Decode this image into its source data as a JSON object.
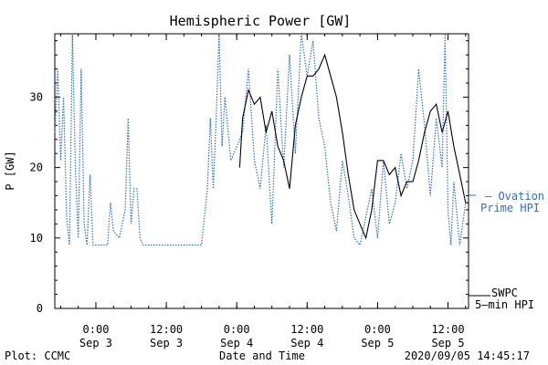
{
  "chart_data": {
    "type": "line",
    "title": "Hemispheric Power [GW]",
    "xlabel": "Date and Time",
    "ylabel": "P [GW]",
    "ylim": [
      0,
      39
    ],
    "xlim": [
      "2020-09-02 17:00",
      "2020-09-05 15:30"
    ],
    "y_ticks": [
      0,
      10,
      20,
      30
    ],
    "x_ticks": [
      {
        "x": "2020-09-03 00:00",
        "line1": "0:00",
        "line2": "Sep 3"
      },
      {
        "x": "2020-09-03 12:00",
        "line1": "12:00",
        "line2": "Sep 3"
      },
      {
        "x": "2020-09-04 00:00",
        "line1": "0:00",
        "line2": "Sep 4"
      },
      {
        "x": "2020-09-04 12:00",
        "line1": "12:00",
        "line2": "Sep 4"
      },
      {
        "x": "2020-09-05 00:00",
        "line1": "0:00",
        "line2": "Sep 5"
      },
      {
        "x": "2020-09-05 12:00",
        "line1": "12:00",
        "line2": "Sep 5"
      }
    ],
    "grid": false,
    "series": [
      {
        "name": "— Ovation Prime HPI",
        "legend_lines": [
          "— Ovation",
          "Prime HPI"
        ],
        "color": "#2f6fc4",
        "style": "dotted",
        "x": [
          "2020-09-02 17:00",
          "2020-09-02 17:30",
          "2020-09-02 18:00",
          "2020-09-02 18:30",
          "2020-09-02 19:00",
          "2020-09-02 19:30",
          "2020-09-02 20:00",
          "2020-09-02 20:30",
          "2020-09-02 21:00",
          "2020-09-02 21:30",
          "2020-09-02 22:00",
          "2020-09-02 22:30",
          "2020-09-02 23:00",
          "2020-09-02 23:30",
          "2020-09-03 00:00",
          "2020-09-03 01:00",
          "2020-09-03 02:00",
          "2020-09-03 02:30",
          "2020-09-03 03:00",
          "2020-09-03 04:00",
          "2020-09-03 05:00",
          "2020-09-03 05:30",
          "2020-09-03 06:00",
          "2020-09-03 06:30",
          "2020-09-03 07:00",
          "2020-09-03 07:30",
          "2020-09-03 08:00",
          "2020-09-03 08:30",
          "2020-09-03 09:00",
          "2020-09-03 09:30",
          "2020-09-03 10:00",
          "2020-09-03 11:00",
          "2020-09-03 12:00",
          "2020-09-03 13:00",
          "2020-09-03 14:00",
          "2020-09-03 14:30",
          "2020-09-03 15:00",
          "2020-09-03 16:00",
          "2020-09-03 17:00",
          "2020-09-03 18:00",
          "2020-09-03 19:00",
          "2020-09-03 19:30",
          "2020-09-03 20:00",
          "2020-09-03 20:30",
          "2020-09-03 21:00",
          "2020-09-03 21:30",
          "2020-09-03 22:00",
          "2020-09-03 23:00",
          "2020-09-04 00:00",
          "2020-09-04 01:00",
          "2020-09-04 02:00",
          "2020-09-04 03:00",
          "2020-09-04 04:00",
          "2020-09-04 05:00",
          "2020-09-04 06:00",
          "2020-09-04 07:00",
          "2020-09-04 08:00",
          "2020-09-04 09:00",
          "2020-09-04 10:00",
          "2020-09-04 11:00",
          "2020-09-04 12:00",
          "2020-09-04 13:00",
          "2020-09-04 14:00",
          "2020-09-04 15:00",
          "2020-09-04 16:00",
          "2020-09-04 17:00",
          "2020-09-04 18:00",
          "2020-09-04 19:00",
          "2020-09-04 20:00",
          "2020-09-04 21:00",
          "2020-09-04 22:00",
          "2020-09-04 23:00",
          "2020-09-05 00:00",
          "2020-09-05 01:00",
          "2020-09-05 02:00",
          "2020-09-05 03:00",
          "2020-09-05 04:00",
          "2020-09-05 05:00",
          "2020-09-05 06:00",
          "2020-09-05 07:00",
          "2020-09-05 08:00",
          "2020-09-05 09:00",
          "2020-09-05 10:00",
          "2020-09-05 11:00",
          "2020-09-05 11:30",
          "2020-09-05 12:00",
          "2020-09-05 12:30",
          "2020-09-05 13:00",
          "2020-09-05 14:00",
          "2020-09-05 15:00"
        ],
        "values": [
          25,
          34,
          21,
          30,
          13,
          9,
          39,
          20,
          10,
          34,
          12,
          9,
          19,
          9,
          9,
          9,
          9,
          15,
          11,
          10,
          14,
          27,
          12,
          17,
          17,
          10,
          9,
          9,
          9,
          9,
          9,
          9,
          9,
          9,
          9,
          9,
          9,
          9,
          9,
          9,
          17,
          27,
          17,
          27,
          39,
          23,
          30,
          21,
          23,
          25,
          34,
          21,
          17,
          26,
          12,
          34,
          20,
          36,
          22,
          39,
          33,
          38,
          27,
          23,
          15,
          11,
          21,
          16,
          10,
          9,
          13,
          17,
          10,
          21,
          12,
          15,
          22,
          17,
          21,
          34,
          26,
          16,
          27,
          20,
          39,
          14,
          9,
          18,
          9,
          15
        ]
      },
      {
        "name": "SWPC 5–min HPI",
        "legend_lines": [
          "SWPC",
          "5–min HPI"
        ],
        "color": "#000000",
        "style": "solid",
        "x": [
          "2020-09-04 00:30",
          "2020-09-04 01:00",
          "2020-09-04 02:00",
          "2020-09-04 03:00",
          "2020-09-04 04:00",
          "2020-09-04 05:00",
          "2020-09-04 06:00",
          "2020-09-04 07:00",
          "2020-09-04 08:00",
          "2020-09-04 09:00",
          "2020-09-04 10:00",
          "2020-09-04 11:00",
          "2020-09-04 12:00",
          "2020-09-04 13:00",
          "2020-09-04 14:00",
          "2020-09-04 15:00",
          "2020-09-04 16:00",
          "2020-09-04 17:00",
          "2020-09-04 18:00",
          "2020-09-04 19:00",
          "2020-09-04 20:00",
          "2020-09-04 21:00",
          "2020-09-04 22:00",
          "2020-09-04 23:00",
          "2020-09-05 00:00",
          "2020-09-05 01:00",
          "2020-09-05 02:00",
          "2020-09-05 03:00",
          "2020-09-05 04:00",
          "2020-09-05 05:00",
          "2020-09-05 06:00",
          "2020-09-05 07:00",
          "2020-09-05 08:00",
          "2020-09-05 09:00",
          "2020-09-05 10:00",
          "2020-09-05 11:00",
          "2020-09-05 12:00",
          "2020-09-05 13:00",
          "2020-09-05 14:00",
          "2020-09-05 15:00",
          "2020-09-05 15:30"
        ],
        "values": [
          20,
          27,
          31,
          29,
          30,
          25,
          28,
          23,
          21,
          17,
          26,
          30,
          33,
          33,
          34,
          36,
          33,
          30,
          25,
          19,
          14,
          12,
          10,
          14,
          21,
          21,
          19,
          20,
          16,
          18,
          18,
          21,
          25,
          28,
          29,
          25,
          28,
          23,
          19,
          15,
          15
        ]
      }
    ]
  },
  "footer": {
    "left": "Plot: CCMC",
    "center": "Date and Time",
    "right": "2020/09/05 14:45:17"
  }
}
